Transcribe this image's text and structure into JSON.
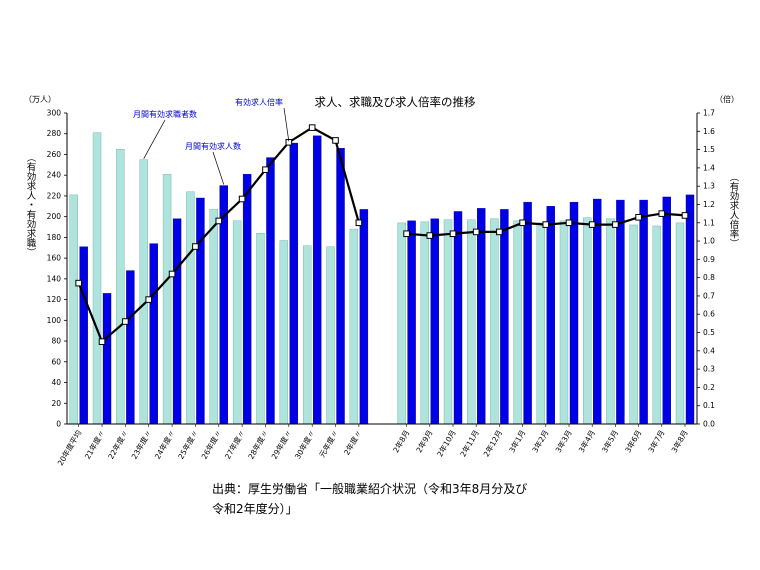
{
  "chart_data": {
    "type": "bar+line",
    "title": "求人、求職及び求人倍率の推移",
    "left_unit": "（万人）",
    "right_unit": "（倍）",
    "left_axis_label": "（有効求人・有効求職）",
    "right_axis_label": "（有効求人倍率）",
    "ylim_left": [
      0,
      300
    ],
    "ylim_right": [
      0.0,
      1.7
    ],
    "left_ticks": [
      "0",
      "20",
      "40",
      "60",
      "80",
      "100",
      "120",
      "140",
      "160",
      "180",
      "200",
      "220",
      "240",
      "260",
      "280",
      "300"
    ],
    "right_ticks": [
      "0.0",
      "0.1",
      "0.2",
      "0.3",
      "0.4",
      "0.5",
      "0.6",
      "0.7",
      "0.8",
      "0.9",
      "1.0",
      "1.1",
      "1.2",
      "1.3",
      "1.4",
      "1.5",
      "1.6",
      "1.7"
    ],
    "categories": [
      "20年度平均",
      "21年度〃",
      "22年度〃",
      "23年度〃",
      "24年度〃",
      "25年度〃",
      "26年度〃",
      "27年度〃",
      "28年度〃",
      "29年度〃",
      "30年度〃",
      "元年度〃",
      "2年度〃",
      "2年8月",
      "2年9月",
      "2年10月",
      "2年11月",
      "2年12月",
      "3年1月",
      "3年2月",
      "3年3月",
      "3年4月",
      "3年5月",
      "3年6月",
      "3年7月",
      "3年8月"
    ],
    "gap_after_index": 12,
    "series": [
      {
        "name": "月間有効求職者数",
        "kind": "bar",
        "color": "#aee4dc",
        "values": [
          221,
          281,
          265,
          255,
          241,
          224,
          207,
          196,
          184,
          177,
          172,
          171,
          188,
          194,
          195,
          197,
          197,
          198,
          196,
          194,
          196,
          199,
          198,
          192,
          191,
          194
        ]
      },
      {
        "name": "月間有効求人数",
        "kind": "bar",
        "color": "#0000e6",
        "values": [
          171,
          126,
          148,
          174,
          198,
          218,
          230,
          241,
          257,
          271,
          278,
          266,
          207,
          196,
          198,
          205,
          208,
          207,
          214,
          210,
          214,
          217,
          216,
          216,
          219,
          221
        ]
      },
      {
        "name": "有効求人倍率",
        "kind": "line",
        "color": "#000000",
        "values": [
          0.77,
          0.45,
          0.56,
          0.68,
          0.82,
          0.97,
          1.11,
          1.23,
          1.39,
          1.54,
          1.62,
          1.55,
          1.1,
          1.04,
          1.03,
          1.04,
          1.05,
          1.05,
          1.1,
          1.09,
          1.1,
          1.09,
          1.09,
          1.13,
          1.15,
          1.14
        ]
      }
    ],
    "annotations": [
      {
        "text": "月間有効求職者数",
        "series": 0,
        "index": 3
      },
      {
        "text": "有効求人倍率",
        "series": 2,
        "index": 9
      },
      {
        "text": "月間有効求人数",
        "series": 1,
        "index": 6
      }
    ]
  },
  "source_note": {
    "line1": "出典：厚生労働省「一般職業紹介状況（令和3年8月分及び",
    "line2": "令和2年度分）」"
  }
}
